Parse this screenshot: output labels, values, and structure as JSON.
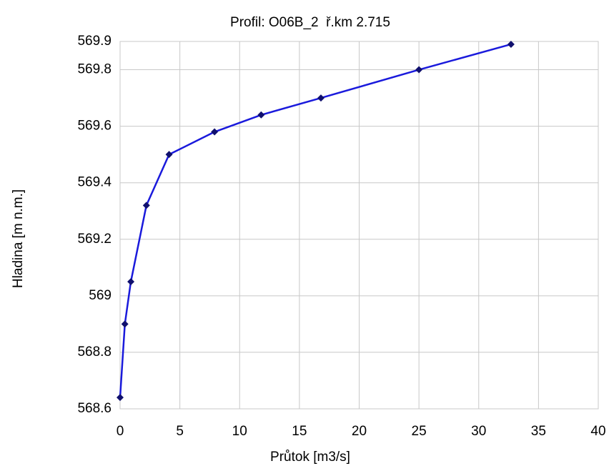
{
  "chart_data": {
    "type": "line",
    "title": "Profil: O06B_2  ř.km 2.715",
    "xlabel": "Průtok [m3/s]",
    "ylabel": "Hladina [m n.m.]",
    "x": [
      0,
      0.4,
      0.9,
      2.2,
      4.1,
      7.9,
      11.8,
      16.8,
      25,
      32.7
    ],
    "series": [
      {
        "color": "#1a1adc",
        "marker_color": "#10106e",
        "values": [
          568.64,
          568.9,
          569.05,
          569.32,
          569.5,
          569.58,
          569.64,
          569.7,
          569.8,
          569.89
        ]
      }
    ],
    "xlim": [
      0,
      40
    ],
    "xticks": [
      0,
      5,
      10,
      15,
      20,
      25,
      30,
      35,
      40
    ],
    "ylim": [
      568.6,
      569.9
    ],
    "yticks": [
      568.6,
      568.8,
      569,
      569.2,
      569.4,
      569.6,
      569.8,
      569.9
    ],
    "grid": true
  }
}
